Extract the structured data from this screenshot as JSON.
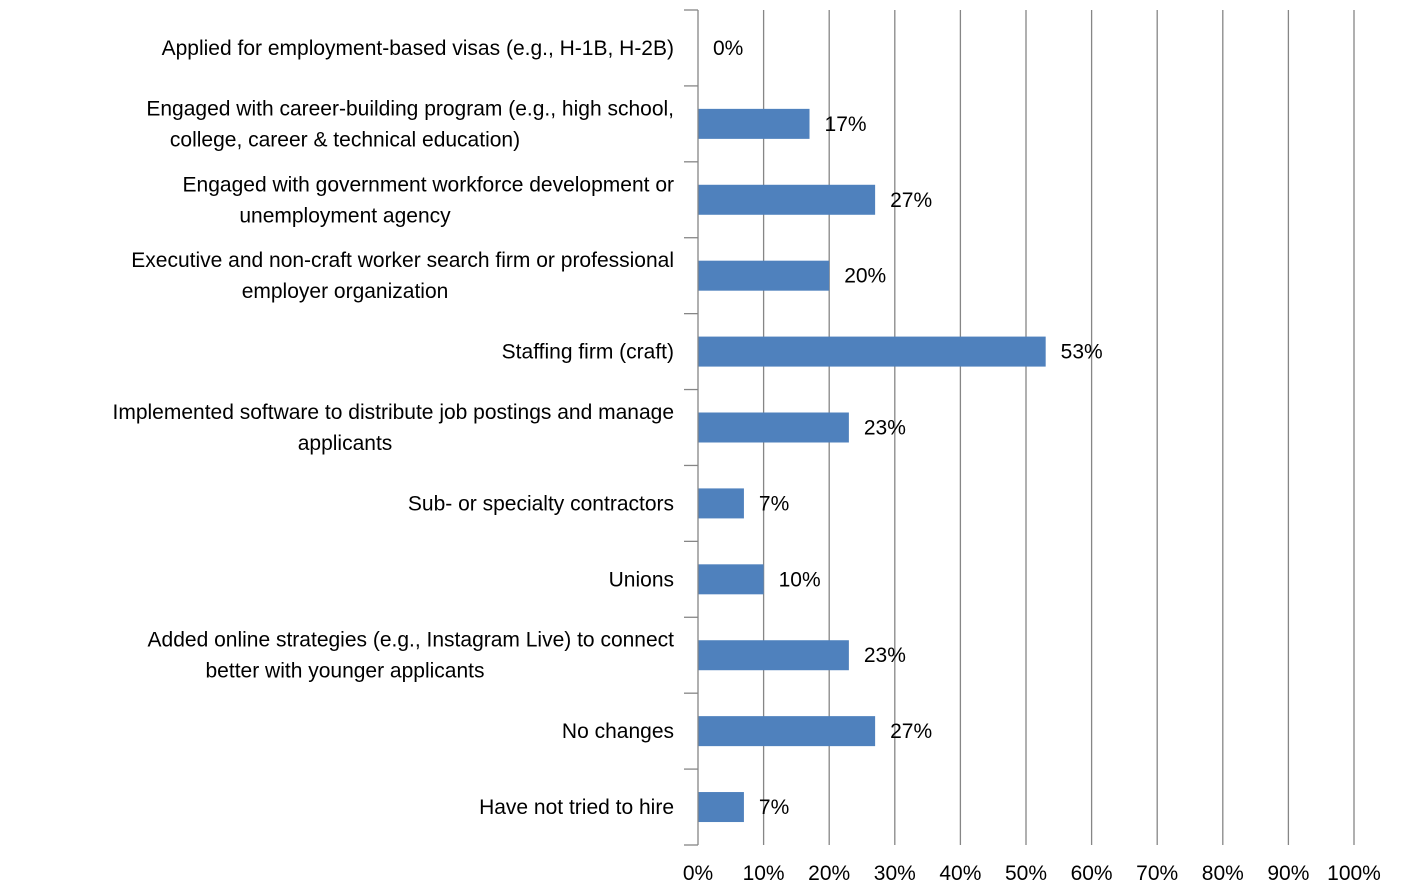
{
  "chart_data": {
    "type": "bar",
    "orientation": "horizontal",
    "categories": [
      [
        "Applied for employment-based visas (e.g., H-1B, H-2B)"
      ],
      [
        "Engaged with career-building program (e.g., high school,",
        "college, career & technical education)"
      ],
      [
        "Engaged with government workforce development or",
        "unemployment agency"
      ],
      [
        "Executive and non-craft worker search firm or professional",
        "employer organization"
      ],
      [
        "Staffing firm (craft)"
      ],
      [
        "Implemented software to distribute job postings and manage",
        "applicants"
      ],
      [
        "Sub- or specialty contractors"
      ],
      [
        "Unions"
      ],
      [
        "Added online strategies (e.g., Instagram Live) to connect",
        "better with younger applicants"
      ],
      [
        "No changes"
      ],
      [
        "Have not tried to hire"
      ]
    ],
    "values": [
      0,
      17,
      27,
      20,
      53,
      23,
      7,
      10,
      23,
      27,
      7
    ],
    "data_labels": [
      "0%",
      "17%",
      "27%",
      "20%",
      "53%",
      "23%",
      "7%",
      "10%",
      "23%",
      "27%",
      "7%"
    ],
    "x_ticks": [
      "0%",
      "10%",
      "20%",
      "30%",
      "40%",
      "50%",
      "60%",
      "70%",
      "80%",
      "90%",
      "100%"
    ],
    "xlim": [
      0,
      100
    ],
    "grid": true,
    "bar_color": "#4F81BD",
    "grid_color": "#868686",
    "title": "",
    "xlabel": "",
    "ylabel": ""
  }
}
